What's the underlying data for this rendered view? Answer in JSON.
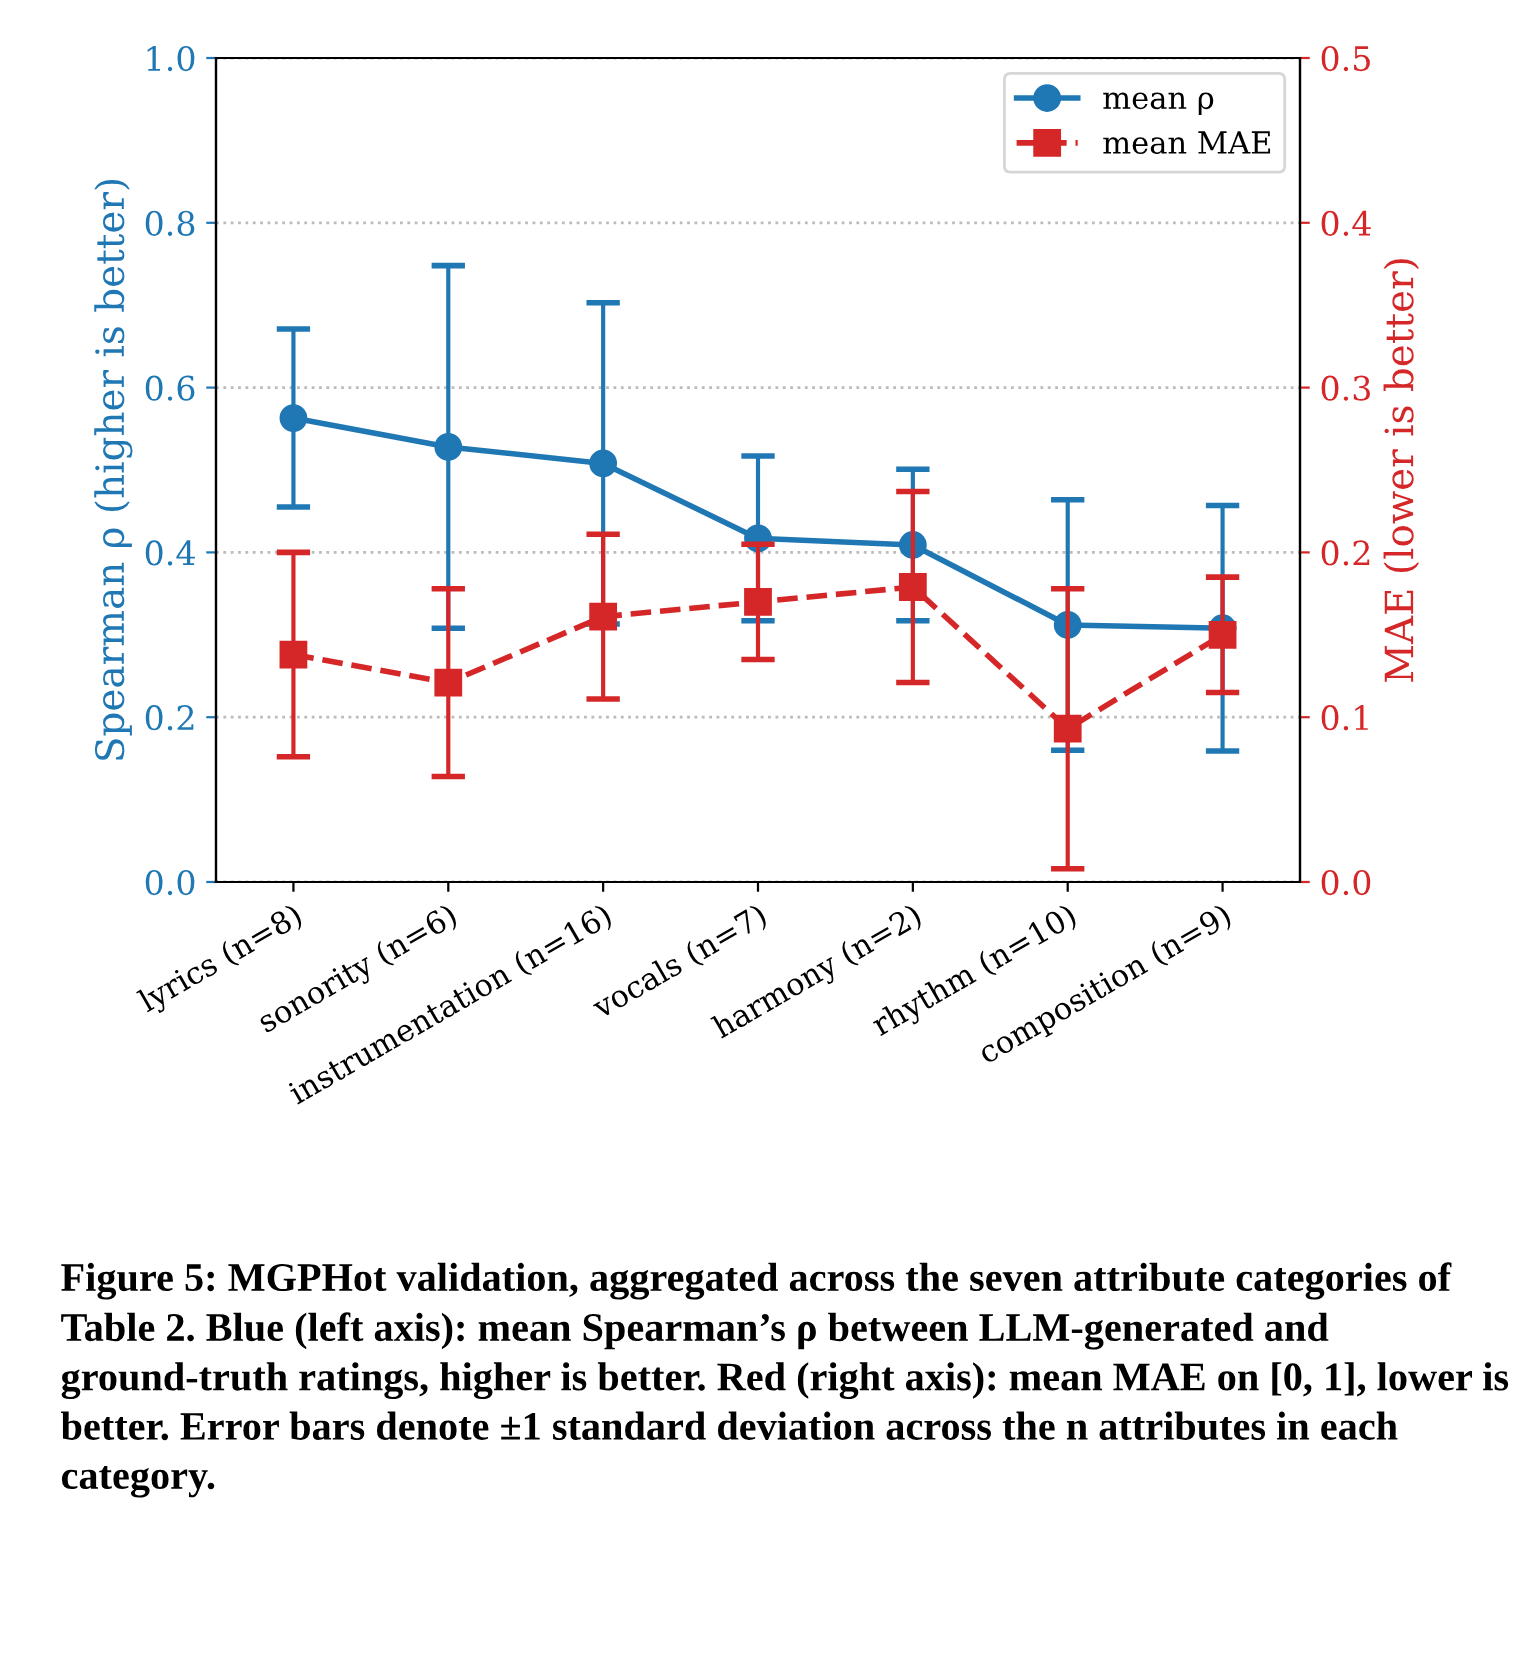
{
  "chart_data": {
    "type": "line",
    "categories": [
      "lyrics (n=8)",
      "sonority (n=6)",
      "instrumentation (n=16)",
      "vocals (n=7)",
      "harmony (n=2)",
      "rhythm (n=10)",
      "composition (n=9)"
    ],
    "series": [
      {
        "name": "mean ρ",
        "color": "#1f77b4",
        "values": [
          0.563,
          0.528,
          0.508,
          0.417,
          0.409,
          0.312,
          0.308
        ],
        "errors": [
          0.108,
          0.22,
          0.195,
          0.1,
          0.092,
          0.152,
          0.149
        ],
        "marker": "circle",
        "line_style": "solid"
      },
      {
        "name": "mean MAE",
        "color": "#d62728",
        "axis": "y2",
        "values": [
          0.138,
          0.121,
          0.161,
          0.17,
          0.179,
          0.093,
          0.15
        ],
        "errors": [
          0.062,
          0.057,
          0.05,
          0.035,
          0.058,
          0.085,
          0.035
        ],
        "marker": "square",
        "line_style": "dashed"
      }
    ],
    "ylabel": "Spearman ρ (higher is better)",
    "y2label": "MAE (lower is better)",
    "ylim": [
      0,
      1
    ],
    "yticks": [
      {
        "value": 0,
        "label": "0.0"
      },
      0.2,
      0.4,
      0.6,
      0.8,
      {
        "value": 1,
        "label": "1.0"
      }
    ],
    "y2lim": [
      0,
      0.5
    ],
    "y2ticks": [
      {
        "value": 0,
        "label": "0.0"
      },
      0.1,
      0.2,
      0.3,
      0.4,
      0.5
    ],
    "grid": "y",
    "legend": "top right",
    "annotations": [
      "Figure 5: MGPHot validation, aggregated across the seven attribute categories of Table 2. Blue (left axis): mean Spearman’s ρ between LLM-generated and ground-truth ratings, higher is better. Red (right axis): mean MAE on [0, 1], lower is better. Error bars denote ±1 standard deviation across the n attributes in each category."
    ]
  }
}
